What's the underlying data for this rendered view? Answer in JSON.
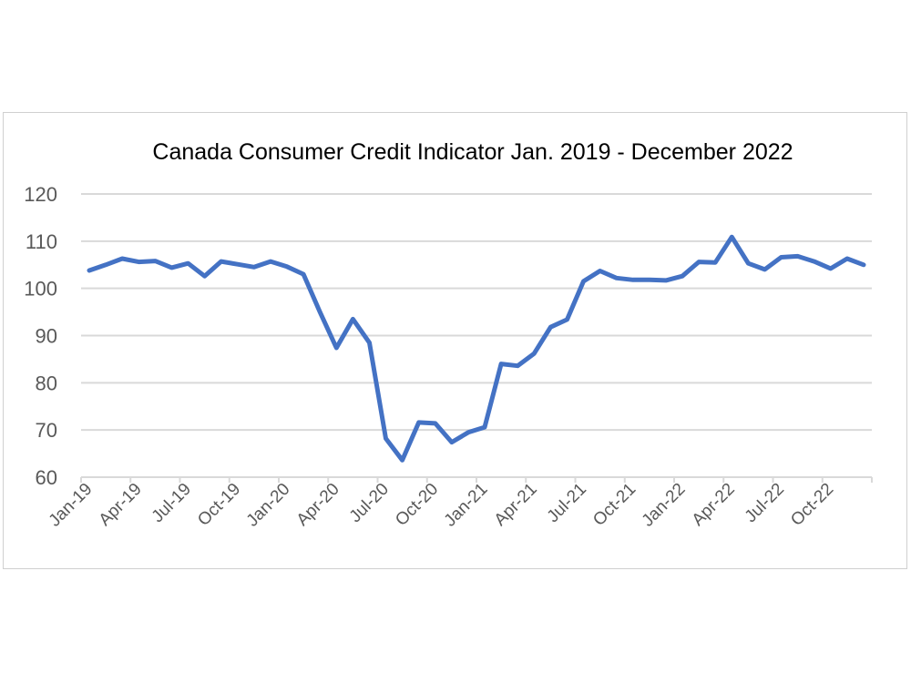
{
  "chart_data": {
    "type": "line",
    "title": "Canada Consumer Credit Indicator Jan. 2019 - December 2022",
    "xlabel": "",
    "ylabel": "",
    "ylim": [
      60,
      120
    ],
    "yticks": [
      60,
      70,
      80,
      90,
      100,
      110,
      120
    ],
    "grid": true,
    "legend": "none",
    "line_color": "#4472C4",
    "categories": [
      "Jan-19",
      "Feb-19",
      "Mar-19",
      "Apr-19",
      "May-19",
      "Jun-19",
      "Jul-19",
      "Aug-19",
      "Sep-19",
      "Oct-19",
      "Nov-19",
      "Dec-19",
      "Jan-20",
      "Feb-20",
      "Mar-20",
      "Apr-20",
      "May-20",
      "Jun-20",
      "Jul-20",
      "Aug-20",
      "Sep-20",
      "Oct-20",
      "Nov-20",
      "Dec-20",
      "Jan-21",
      "Feb-21",
      "Mar-21",
      "Apr-21",
      "May-21",
      "Jun-21",
      "Jul-21",
      "Aug-21",
      "Sep-21",
      "Oct-21",
      "Nov-21",
      "Dec-21",
      "Jan-22",
      "Feb-22",
      "Mar-22",
      "Apr-22",
      "May-22",
      "Jun-22",
      "Jul-22",
      "Aug-22",
      "Sep-22",
      "Oct-22",
      "Nov-22",
      "Dec-22"
    ],
    "tick_labels": [
      "Jan-19",
      "Apr-19",
      "Jul-19",
      "Oct-19",
      "Jan-20",
      "Apr-20",
      "Jul-20",
      "Oct-20",
      "Jan-21",
      "Apr-21",
      "Jul-21",
      "Oct-21",
      "Jan-22",
      "Apr-22",
      "Jul-22",
      "Oct-22"
    ],
    "values": [
      103.8,
      105.0,
      106.3,
      105.6,
      105.8,
      104.4,
      105.3,
      102.6,
      105.7,
      105.1,
      104.5,
      105.7,
      104.6,
      103.0,
      95.0,
      87.4,
      93.5,
      88.5,
      68.2,
      63.6,
      71.6,
      71.4,
      67.4,
      69.5,
      70.6,
      84.0,
      83.6,
      86.2,
      91.8,
      93.4,
      101.5,
      103.7,
      102.2,
      101.8,
      101.8,
      101.7,
      102.6,
      105.6,
      105.5,
      110.9,
      105.3,
      104.0,
      106.6,
      106.8,
      105.7,
      104.2,
      106.3,
      105.0
    ]
  }
}
